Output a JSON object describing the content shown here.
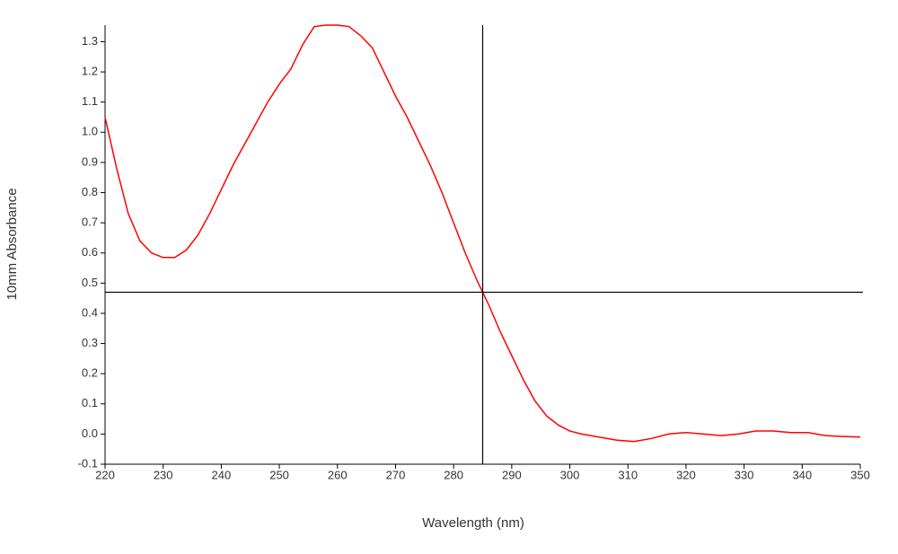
{
  "chart_data": {
    "type": "line",
    "x_label": "Wavelength (nm)",
    "y_label": "10mm Absorbance",
    "x": [
      220,
      222,
      224,
      226,
      228,
      230,
      232,
      234,
      236,
      238,
      240,
      242,
      244,
      246,
      248,
      250,
      252,
      254,
      256,
      258,
      260,
      262,
      264,
      266,
      268,
      270,
      272,
      274,
      276,
      278,
      280,
      282,
      284,
      285,
      286,
      288,
      290,
      292,
      294,
      296,
      298,
      300,
      302,
      305,
      308,
      311,
      314,
      317,
      320,
      323,
      326,
      329,
      332,
      335,
      338,
      341,
      344,
      347,
      350
    ],
    "series": [
      {
        "color": "#ff0000",
        "values": [
          1.05,
          0.88,
          0.73,
          0.64,
          0.6,
          0.585,
          0.585,
          0.61,
          0.66,
          0.73,
          0.81,
          0.89,
          0.96,
          1.03,
          1.1,
          1.16,
          1.21,
          1.29,
          1.35,
          1.355,
          1.355,
          1.35,
          1.32,
          1.28,
          1.2,
          1.12,
          1.05,
          0.97,
          0.89,
          0.8,
          0.7,
          0.6,
          0.51,
          0.47,
          0.43,
          0.34,
          0.26,
          0.18,
          0.11,
          0.06,
          0.03,
          0.01,
          0.0,
          -0.01,
          -0.02,
          -0.025,
          -0.015,
          0.0,
          0.005,
          0.0,
          -0.005,
          0.0,
          0.01,
          0.01,
          0.005,
          0.005,
          -0.005,
          -0.008,
          -0.01
        ]
      }
    ],
    "xlim": [
      220,
      350
    ],
    "xticks": [
      220,
      230,
      240,
      250,
      260,
      270,
      280,
      290,
      300,
      310,
      320,
      330,
      340,
      350
    ],
    "ylim": [
      -0.1,
      1.355
    ],
    "yticks": [
      -0.1,
      {
        "value": 0,
        "label": "0.0"
      },
      0.1,
      0.2,
      0.3,
      0.4,
      0.5,
      0.6,
      0.7,
      0.8,
      0.9,
      {
        "value": 1,
        "label": "1.0"
      },
      1.1,
      1.2,
      1.3
    ],
    "crosshair": {
      "x": 285,
      "y": 0.47,
      "color": "#000000"
    }
  }
}
